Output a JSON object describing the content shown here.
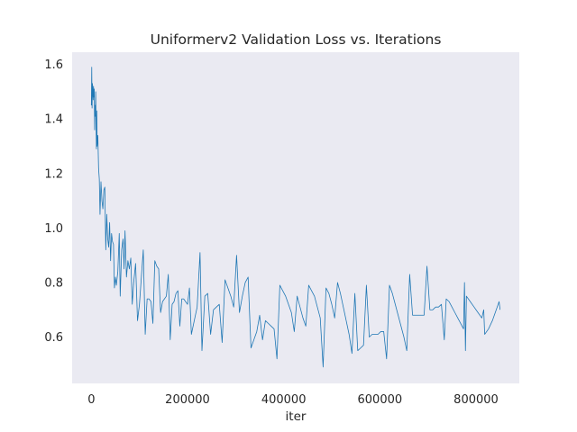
{
  "chart_data": {
    "type": "line",
    "title": "Uniformerv2 Validation Loss vs. Iterations",
    "xlabel": "iter",
    "ylabel": "",
    "xlim": [
      -40000,
      890000
    ],
    "ylim": [
      0.43,
      1.645
    ],
    "x_ticks": [
      0,
      200000,
      400000,
      600000,
      800000
    ],
    "x_tick_labels": [
      "0",
      "200000",
      "400000",
      "600000",
      "800000"
    ],
    "y_ticks": [
      0.6,
      0.8,
      1.0,
      1.2,
      1.4,
      1.6
    ],
    "y_tick_labels": [
      "0.6",
      "0.8",
      "1.0",
      "1.2",
      "1.4",
      "1.6"
    ],
    "grid": false,
    "background": "#eaeaf2",
    "series": [
      {
        "name": "",
        "color": "#1f77b4",
        "points": [
          [
            0,
            1.45
          ],
          [
            800,
            1.59
          ],
          [
            1500,
            1.44
          ],
          [
            2300,
            1.53
          ],
          [
            3000,
            1.5
          ],
          [
            3800,
            1.47
          ],
          [
            4500,
            1.52
          ],
          [
            5300,
            1.48
          ],
          [
            6000,
            1.51
          ],
          [
            6800,
            1.36
          ],
          [
            7500,
            1.45
          ],
          [
            8300,
            1.41
          ],
          [
            9000,
            1.5
          ],
          [
            9800,
            1.38
          ],
          [
            10500,
            1.29
          ],
          [
            11300,
            1.43
          ],
          [
            12000,
            1.3
          ],
          [
            13500,
            1.34
          ],
          [
            15000,
            1.22
          ],
          [
            16500,
            1.18
          ],
          [
            18000,
            1.05
          ],
          [
            20000,
            1.17
          ],
          [
            22000,
            1.1
          ],
          [
            24000,
            1.07
          ],
          [
            26000,
            1.14
          ],
          [
            28000,
            1.15
          ],
          [
            30000,
            0.92
          ],
          [
            32000,
            1.05
          ],
          [
            34000,
            0.96
          ],
          [
            36000,
            0.93
          ],
          [
            38000,
            1.02
          ],
          [
            40000,
            0.88
          ],
          [
            42000,
            0.98
          ],
          [
            44000,
            0.95
          ],
          [
            46000,
            0.94
          ],
          [
            48000,
            0.78
          ],
          [
            50000,
            0.82
          ],
          [
            52000,
            0.79
          ],
          [
            55000,
            0.84
          ],
          [
            58000,
            0.98
          ],
          [
            60000,
            0.75
          ],
          [
            63000,
            0.92
          ],
          [
            66000,
            0.96
          ],
          [
            68000,
            0.85
          ],
          [
            70000,
            0.99
          ],
          [
            73000,
            0.82
          ],
          [
            76000,
            0.88
          ],
          [
            79000,
            0.85
          ],
          [
            82000,
            0.89
          ],
          [
            85000,
            0.72
          ],
          [
            88000,
            0.8
          ],
          [
            92000,
            0.87
          ],
          [
            96000,
            0.66
          ],
          [
            100000,
            0.72
          ],
          [
            104000,
            0.82
          ],
          [
            108000,
            0.92
          ],
          [
            112000,
            0.61
          ],
          [
            116000,
            0.74
          ],
          [
            120000,
            0.74
          ],
          [
            124000,
            0.73
          ],
          [
            128000,
            0.65
          ],
          [
            132000,
            0.88
          ],
          [
            136000,
            0.86
          ],
          [
            140000,
            0.85
          ],
          [
            144000,
            0.69
          ],
          [
            148000,
            0.73
          ],
          [
            152000,
            0.74
          ],
          [
            156000,
            0.75
          ],
          [
            160000,
            0.83
          ],
          [
            164000,
            0.59
          ],
          [
            168000,
            0.72
          ],
          [
            172000,
            0.73
          ],
          [
            176000,
            0.76
          ],
          [
            180000,
            0.77
          ],
          [
            184000,
            0.64
          ],
          [
            188000,
            0.74
          ],
          [
            192000,
            0.74
          ],
          [
            196000,
            0.73
          ],
          [
            200000,
            0.72
          ],
          [
            204000,
            0.78
          ],
          [
            208000,
            0.61
          ],
          [
            214000,
            0.66
          ],
          [
            220000,
            0.71
          ],
          [
            226000,
            0.91
          ],
          [
            230000,
            0.55
          ],
          [
            236000,
            0.75
          ],
          [
            242000,
            0.76
          ],
          [
            248000,
            0.61
          ],
          [
            254000,
            0.7
          ],
          [
            260000,
            0.71
          ],
          [
            266000,
            0.72
          ],
          [
            272000,
            0.58
          ],
          [
            278000,
            0.81
          ],
          [
            284000,
            0.78
          ],
          [
            290000,
            0.75
          ],
          [
            296000,
            0.71
          ],
          [
            302000,
            0.9
          ],
          [
            308000,
            0.69
          ],
          [
            314000,
            0.75
          ],
          [
            320000,
            0.8
          ],
          [
            326000,
            0.82
          ],
          [
            332000,
            0.56
          ],
          [
            338000,
            0.59
          ],
          [
            344000,
            0.62
          ],
          [
            350000,
            0.68
          ],
          [
            356000,
            0.59
          ],
          [
            362000,
            0.66
          ],
          [
            368000,
            0.65
          ],
          [
            374000,
            0.64
          ],
          [
            380000,
            0.63
          ],
          [
            386000,
            0.52
          ],
          [
            392000,
            0.79
          ],
          [
            398000,
            0.77
          ],
          [
            404000,
            0.75
          ],
          [
            410000,
            0.72
          ],
          [
            416000,
            0.69
          ],
          [
            422000,
            0.62
          ],
          [
            428000,
            0.75
          ],
          [
            434000,
            0.71
          ],
          [
            440000,
            0.67
          ],
          [
            446000,
            0.64
          ],
          [
            452000,
            0.79
          ],
          [
            458000,
            0.77
          ],
          [
            464000,
            0.75
          ],
          [
            470000,
            0.71
          ],
          [
            476000,
            0.67
          ],
          [
            482000,
            0.49
          ],
          [
            488000,
            0.78
          ],
          [
            494000,
            0.76
          ],
          [
            500000,
            0.72
          ],
          [
            506000,
            0.67
          ],
          [
            512000,
            0.8
          ],
          [
            518000,
            0.76
          ],
          [
            524000,
            0.71
          ],
          [
            530000,
            0.66
          ],
          [
            536000,
            0.61
          ],
          [
            542000,
            0.54
          ],
          [
            548000,
            0.76
          ],
          [
            554000,
            0.55
          ],
          [
            560000,
            0.56
          ],
          [
            566000,
            0.57
          ],
          [
            572000,
            0.79
          ],
          [
            578000,
            0.6
          ],
          [
            584000,
            0.61
          ],
          [
            590000,
            0.61
          ],
          [
            596000,
            0.61
          ],
          [
            602000,
            0.62
          ],
          [
            608000,
            0.62
          ],
          [
            614000,
            0.52
          ],
          [
            620000,
            0.79
          ],
          [
            626000,
            0.76
          ],
          [
            632000,
            0.72
          ],
          [
            638000,
            0.68
          ],
          [
            644000,
            0.64
          ],
          [
            650000,
            0.6
          ],
          [
            656000,
            0.55
          ],
          [
            662000,
            0.83
          ],
          [
            668000,
            0.68
          ],
          [
            674000,
            0.68
          ],
          [
            680000,
            0.68
          ],
          [
            686000,
            0.68
          ],
          [
            692000,
            0.68
          ],
          [
            698000,
            0.86
          ],
          [
            704000,
            0.7
          ],
          [
            710000,
            0.7
          ],
          [
            716000,
            0.71
          ],
          [
            722000,
            0.71
          ],
          [
            728000,
            0.72
          ],
          [
            734000,
            0.59
          ],
          [
            738000,
            0.74
          ],
          [
            744000,
            0.73
          ],
          [
            750000,
            0.71
          ],
          [
            756000,
            0.69
          ],
          [
            762000,
            0.67
          ],
          [
            768000,
            0.65
          ],
          [
            774000,
            0.63
          ],
          [
            776000,
            0.8
          ],
          [
            778000,
            0.55
          ],
          [
            780000,
            0.75
          ],
          [
            788000,
            0.73
          ],
          [
            796000,
            0.71
          ],
          [
            804000,
            0.69
          ],
          [
            812000,
            0.67
          ],
          [
            816000,
            0.7
          ],
          [
            818000,
            0.61
          ],
          [
            826000,
            0.63
          ],
          [
            834000,
            0.66
          ],
          [
            842000,
            0.7
          ],
          [
            848000,
            0.73
          ],
          [
            850000,
            0.7
          ]
        ]
      }
    ]
  }
}
